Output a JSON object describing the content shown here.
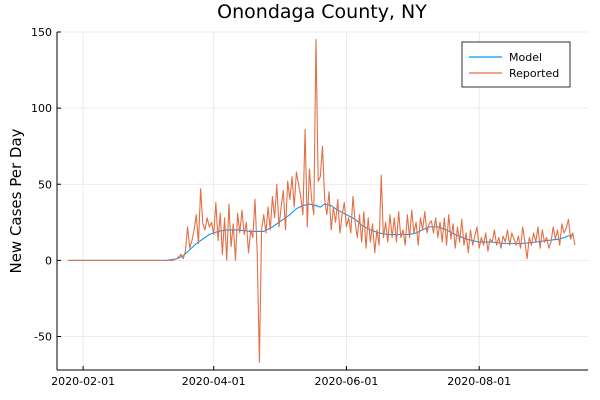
{
  "chart_data": {
    "type": "line",
    "title": "Onondaga County, NY",
    "xlabel": "",
    "ylabel": "New Cases Per Day",
    "x_axis": {
      "type": "date",
      "range": [
        "2020-01-20",
        "2020-09-20"
      ],
      "tick_values": [
        "2020-02-01",
        "2020-04-01",
        "2020-06-01",
        "2020-08-01"
      ],
      "tick_labels": [
        "2020-02-01",
        "2020-04-01",
        "2020-06-01",
        "2020-08-01"
      ]
    },
    "y_axis": {
      "range": [
        -72,
        150
      ],
      "tick_values": [
        -50,
        0,
        50,
        100,
        150
      ],
      "tick_labels": [
        "-50",
        "0",
        "50",
        "100",
        "150"
      ]
    },
    "grid": true,
    "legend_position": "top-right",
    "colors": {
      "Model": "#009af9",
      "Reported": "#e26f46"
    },
    "series": [
      {
        "name": "Model",
        "points": [
          [
            "2020-01-25",
            0
          ],
          [
            "2020-03-10",
            0
          ],
          [
            "2020-03-15",
            1
          ],
          [
            "2020-03-18",
            3
          ],
          [
            "2020-03-21",
            7
          ],
          [
            "2020-03-24",
            11
          ],
          [
            "2020-03-27",
            14
          ],
          [
            "2020-03-30",
            17
          ],
          [
            "2020-04-03",
            19
          ],
          [
            "2020-04-07",
            20
          ],
          [
            "2020-04-12",
            20
          ],
          [
            "2020-04-18",
            19
          ],
          [
            "2020-04-24",
            19
          ],
          [
            "2020-04-28",
            22
          ],
          [
            "2020-05-02",
            26
          ],
          [
            "2020-05-06",
            30
          ],
          [
            "2020-05-09",
            34
          ],
          [
            "2020-05-12",
            36
          ],
          [
            "2020-05-15",
            37
          ],
          [
            "2020-05-18",
            36
          ],
          [
            "2020-05-20",
            35
          ],
          [
            "2020-05-22",
            37
          ],
          [
            "2020-05-25",
            36
          ],
          [
            "2020-05-28",
            33
          ],
          [
            "2020-06-01",
            30
          ],
          [
            "2020-06-05",
            27
          ],
          [
            "2020-06-08",
            23
          ],
          [
            "2020-06-12",
            20
          ],
          [
            "2020-06-16",
            18
          ],
          [
            "2020-06-20",
            17
          ],
          [
            "2020-06-25",
            17
          ],
          [
            "2020-06-30",
            17
          ],
          [
            "2020-07-03",
            18
          ],
          [
            "2020-07-06",
            20
          ],
          [
            "2020-07-09",
            22
          ],
          [
            "2020-07-13",
            22
          ],
          [
            "2020-07-17",
            20
          ],
          [
            "2020-07-21",
            17
          ],
          [
            "2020-07-26",
            14
          ],
          [
            "2020-08-01",
            12
          ],
          [
            "2020-08-07",
            12
          ],
          [
            "2020-08-13",
            11
          ],
          [
            "2020-08-20",
            11
          ],
          [
            "2020-08-27",
            12
          ],
          [
            "2020-09-01",
            13
          ],
          [
            "2020-09-07",
            14
          ],
          [
            "2020-09-13",
            17
          ]
        ]
      },
      {
        "name": "Reported",
        "points": [
          [
            "2020-01-25",
            0
          ],
          [
            "2020-03-13",
            0
          ],
          [
            "2020-03-15",
            1
          ],
          [
            "2020-03-17",
            4
          ],
          [
            "2020-03-18",
            1
          ],
          [
            "2020-03-19",
            6
          ],
          [
            "2020-03-20",
            22
          ],
          [
            "2020-03-21",
            8
          ],
          [
            "2020-03-22",
            13
          ],
          [
            "2020-03-23",
            20
          ],
          [
            "2020-03-24",
            30
          ],
          [
            "2020-03-25",
            11
          ],
          [
            "2020-03-26",
            47
          ],
          [
            "2020-03-27",
            24
          ],
          [
            "2020-03-28",
            20
          ],
          [
            "2020-03-29",
            28
          ],
          [
            "2020-03-30",
            22
          ],
          [
            "2020-03-31",
            25
          ],
          [
            "2020-04-01",
            17
          ],
          [
            "2020-04-02",
            38
          ],
          [
            "2020-04-03",
            13
          ],
          [
            "2020-04-04",
            31
          ],
          [
            "2020-04-05",
            4
          ],
          [
            "2020-04-06",
            28
          ],
          [
            "2020-04-07",
            0
          ],
          [
            "2020-04-08",
            37
          ],
          [
            "2020-04-09",
            9
          ],
          [
            "2020-04-10",
            24
          ],
          [
            "2020-04-11",
            0
          ],
          [
            "2020-04-12",
            31
          ],
          [
            "2020-04-13",
            18
          ],
          [
            "2020-04-14",
            33
          ],
          [
            "2020-04-15",
            17
          ],
          [
            "2020-04-16",
            25
          ],
          [
            "2020-04-17",
            5
          ],
          [
            "2020-04-18",
            20
          ],
          [
            "2020-04-19",
            15
          ],
          [
            "2020-04-20",
            40
          ],
          [
            "2020-04-21",
            5
          ],
          [
            "2020-04-22",
            -67
          ],
          [
            "2020-04-23",
            20
          ],
          [
            "2020-04-24",
            30
          ],
          [
            "2020-04-25",
            18
          ],
          [
            "2020-04-26",
            35
          ],
          [
            "2020-04-27",
            20
          ],
          [
            "2020-04-28",
            42
          ],
          [
            "2020-04-29",
            28
          ],
          [
            "2020-04-30",
            50
          ],
          [
            "2020-05-01",
            22
          ],
          [
            "2020-05-02",
            35
          ],
          [
            "2020-05-03",
            46
          ],
          [
            "2020-05-04",
            20
          ],
          [
            "2020-05-05",
            52
          ],
          [
            "2020-05-06",
            40
          ],
          [
            "2020-05-07",
            55
          ],
          [
            "2020-05-08",
            35
          ],
          [
            "2020-05-09",
            58
          ],
          [
            "2020-05-10",
            50
          ],
          [
            "2020-05-11",
            42
          ],
          [
            "2020-05-12",
            30
          ],
          [
            "2020-05-13",
            86
          ],
          [
            "2020-05-14",
            22
          ],
          [
            "2020-05-15",
            60
          ],
          [
            "2020-05-16",
            40
          ],
          [
            "2020-05-17",
            30
          ],
          [
            "2020-05-18",
            145
          ],
          [
            "2020-05-19",
            52
          ],
          [
            "2020-05-20",
            55
          ],
          [
            "2020-05-21",
            75
          ],
          [
            "2020-05-22",
            40
          ],
          [
            "2020-05-23",
            30
          ],
          [
            "2020-05-24",
            45
          ],
          [
            "2020-05-25",
            20
          ],
          [
            "2020-05-26",
            35
          ],
          [
            "2020-05-27",
            25
          ],
          [
            "2020-05-28",
            40
          ],
          [
            "2020-05-29",
            18
          ],
          [
            "2020-05-30",
            30
          ],
          [
            "2020-05-31",
            38
          ],
          [
            "2020-06-01",
            22
          ],
          [
            "2020-06-02",
            28
          ],
          [
            "2020-06-03",
            18
          ],
          [
            "2020-06-04",
            42
          ],
          [
            "2020-06-05",
            25
          ],
          [
            "2020-06-06",
            15
          ],
          [
            "2020-06-07",
            30
          ],
          [
            "2020-06-08",
            12
          ],
          [
            "2020-06-09",
            32
          ],
          [
            "2020-06-10",
            8
          ],
          [
            "2020-06-11",
            28
          ],
          [
            "2020-06-12",
            12
          ],
          [
            "2020-06-13",
            24
          ],
          [
            "2020-06-14",
            5
          ],
          [
            "2020-06-15",
            20
          ],
          [
            "2020-06-16",
            10
          ],
          [
            "2020-06-17",
            56
          ],
          [
            "2020-06-18",
            15
          ],
          [
            "2020-06-19",
            25
          ],
          [
            "2020-06-20",
            12
          ],
          [
            "2020-06-21",
            30
          ],
          [
            "2020-06-22",
            15
          ],
          [
            "2020-06-23",
            28
          ],
          [
            "2020-06-24",
            12
          ],
          [
            "2020-06-25",
            32
          ],
          [
            "2020-06-26",
            15
          ],
          [
            "2020-06-27",
            20
          ],
          [
            "2020-06-28",
            10
          ],
          [
            "2020-06-29",
            30
          ],
          [
            "2020-06-30",
            15
          ],
          [
            "2020-07-01",
            33
          ],
          [
            "2020-07-02",
            18
          ],
          [
            "2020-07-03",
            25
          ],
          [
            "2020-07-04",
            10
          ],
          [
            "2020-07-05",
            28
          ],
          [
            "2020-07-06",
            20
          ],
          [
            "2020-07-07",
            32
          ],
          [
            "2020-07-08",
            18
          ],
          [
            "2020-07-09",
            24
          ],
          [
            "2020-07-10",
            26
          ],
          [
            "2020-07-11",
            18
          ],
          [
            "2020-07-12",
            28
          ],
          [
            "2020-07-13",
            15
          ],
          [
            "2020-07-14",
            25
          ],
          [
            "2020-07-15",
            12
          ],
          [
            "2020-07-16",
            28
          ],
          [
            "2020-07-17",
            10
          ],
          [
            "2020-07-18",
            30
          ],
          [
            "2020-07-19",
            14
          ],
          [
            "2020-07-20",
            24
          ],
          [
            "2020-07-21",
            8
          ],
          [
            "2020-07-22",
            22
          ],
          [
            "2020-07-23",
            12
          ],
          [
            "2020-07-24",
            27
          ],
          [
            "2020-07-25",
            10
          ],
          [
            "2020-07-26",
            18
          ],
          [
            "2020-07-27",
            5
          ],
          [
            "2020-07-28",
            20
          ],
          [
            "2020-07-29",
            10
          ],
          [
            "2020-07-30",
            16
          ],
          [
            "2020-07-31",
            22
          ],
          [
            "2020-08-01",
            8
          ],
          [
            "2020-08-02",
            15
          ],
          [
            "2020-08-03",
            10
          ],
          [
            "2020-08-04",
            18
          ],
          [
            "2020-08-05",
            6
          ],
          [
            "2020-08-06",
            14
          ],
          [
            "2020-08-07",
            12
          ],
          [
            "2020-08-08",
            20
          ],
          [
            "2020-08-09",
            10
          ],
          [
            "2020-08-10",
            15
          ],
          [
            "2020-08-11",
            8
          ],
          [
            "2020-08-12",
            16
          ],
          [
            "2020-08-13",
            12
          ],
          [
            "2020-08-14",
            20
          ],
          [
            "2020-08-15",
            10
          ],
          [
            "2020-08-16",
            18
          ],
          [
            "2020-08-17",
            14
          ],
          [
            "2020-08-18",
            10
          ],
          [
            "2020-08-19",
            16
          ],
          [
            "2020-08-20",
            8
          ],
          [
            "2020-08-21",
            22
          ],
          [
            "2020-08-22",
            12
          ],
          [
            "2020-08-23",
            1
          ],
          [
            "2020-08-24",
            15
          ],
          [
            "2020-08-25",
            10
          ],
          [
            "2020-08-26",
            18
          ],
          [
            "2020-08-27",
            12
          ],
          [
            "2020-08-28",
            22
          ],
          [
            "2020-08-29",
            8
          ],
          [
            "2020-08-30",
            20
          ],
          [
            "2020-08-31",
            12
          ],
          [
            "2020-09-01",
            15
          ],
          [
            "2020-09-02",
            8
          ],
          [
            "2020-09-03",
            12
          ],
          [
            "2020-09-04",
            22
          ],
          [
            "2020-09-05",
            14
          ],
          [
            "2020-09-06",
            20
          ],
          [
            "2020-09-07",
            10
          ],
          [
            "2020-09-08",
            24
          ],
          [
            "2020-09-09",
            18
          ],
          [
            "2020-09-10",
            21
          ],
          [
            "2020-09-11",
            27
          ],
          [
            "2020-09-12",
            14
          ],
          [
            "2020-09-13",
            18
          ],
          [
            "2020-09-14",
            10
          ]
        ]
      }
    ]
  }
}
